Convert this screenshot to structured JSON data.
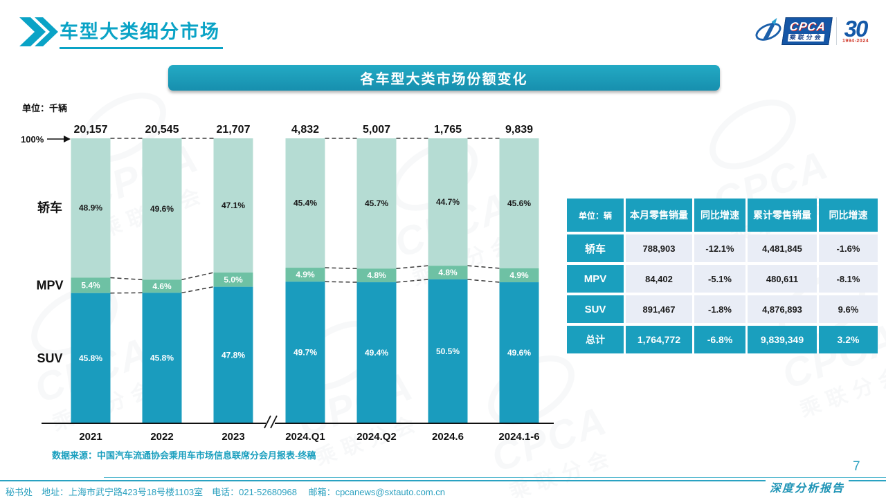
{
  "header": {
    "title": "车型大类细分市场"
  },
  "logo": {
    "cpca": "CPCA",
    "sub": "乘联分会",
    "anniversary": "30",
    "years": "1994-2024"
  },
  "banner": {
    "title": "各车型大类市场份额变化"
  },
  "chart": {
    "unit_label": "单位：千辆",
    "hundred_label": "100%"
  },
  "chart_data": {
    "type": "bar",
    "stacked": true,
    "title": "各车型大类市场份额变化",
    "unit": "千辆",
    "ylim": [
      0,
      100
    ],
    "categories": [
      "2021",
      "2022",
      "2023",
      "2024.Q1",
      "2024.Q2",
      "2024.6",
      "2024.1-6"
    ],
    "totals": [
      "20,157",
      "20,545",
      "21,707",
      "4,832",
      "5,007",
      "1,765",
      "9,839"
    ],
    "series": [
      {
        "name": "轿车",
        "color": "#B5DCD3",
        "label_color": "#1a1a1a",
        "values": [
          48.9,
          49.6,
          47.1,
          45.4,
          45.7,
          44.7,
          45.6
        ]
      },
      {
        "name": "MPV",
        "color": "#6EC1A4",
        "label_color": "#ffffff",
        "values": [
          5.4,
          4.6,
          5.0,
          4.9,
          4.8,
          4.8,
          4.9
        ]
      },
      {
        "name": "SUV",
        "color": "#1A9CBE",
        "label_color": "#ffffff",
        "values": [
          45.8,
          45.8,
          47.8,
          49.7,
          49.4,
          50.5,
          49.6
        ]
      }
    ],
    "connected_pairs": [
      [
        0,
        1
      ],
      [
        1,
        2
      ],
      [
        3,
        4
      ],
      [
        4,
        5
      ],
      [
        5,
        6
      ]
    ],
    "axis_break_after_index": 2,
    "legend_position": "left-axis-labels",
    "grid": false
  },
  "table": {
    "unit_header": "单位：辆",
    "columns": [
      "本月零售销量",
      "同比增速",
      "累计零售销量",
      "同比增速"
    ],
    "rows": [
      {
        "label": "轿车",
        "cells": [
          "788,903",
          "-12.1%",
          "4,481,845",
          "-1.6%"
        ],
        "total": false
      },
      {
        "label": "MPV",
        "cells": [
          "84,402",
          "-5.1%",
          "480,611",
          "-8.1%"
        ],
        "total": false
      },
      {
        "label": "SUV",
        "cells": [
          "891,467",
          "-1.8%",
          "4,876,893",
          "9.6%"
        ],
        "total": false
      },
      {
        "label": "总计",
        "cells": [
          "1,764,772",
          "-6.8%",
          "9,839,349",
          "3.2%"
        ],
        "total": true
      }
    ]
  },
  "source": "数据来源：中国汽车流通协会乘用车市场信息联席分会月报表-终稿",
  "footer": {
    "info": "秘书处　地址：上海市武宁路423号18号楼1103室　电话：021-52680968　 邮箱：cpcanews@sxtauto.com.cn",
    "page_number": "7",
    "report_label": "深度分析报告"
  },
  "colors": {
    "accent": "#1A9FBE",
    "title": "#0AA3C6",
    "sedan": "#B5DCD3",
    "mpv": "#6EC1A4",
    "suv": "#1A9CBE",
    "cell_bg": "#E9EDF6"
  },
  "watermark": {
    "text": "CPCA",
    "sub": "乘联分会"
  }
}
